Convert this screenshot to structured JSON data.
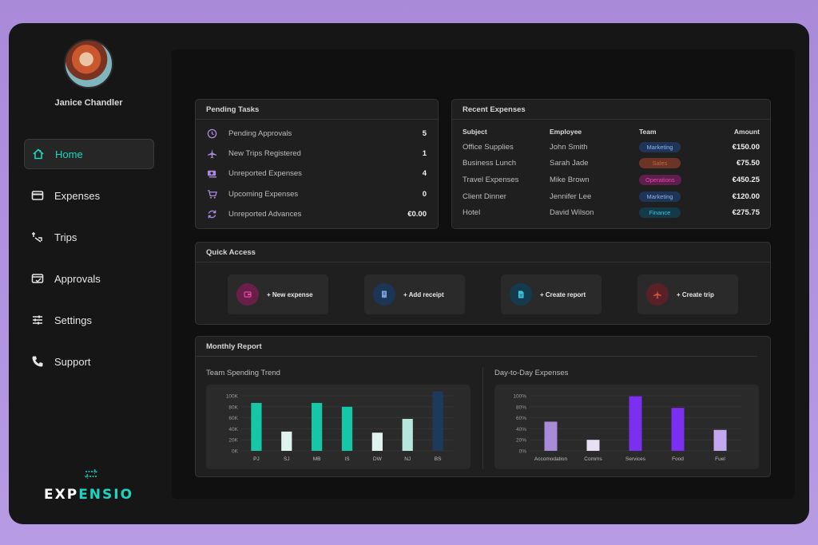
{
  "user": {
    "name": "Janice Chandler"
  },
  "nav": [
    {
      "label": "Home",
      "icon": "home-icon",
      "active": true
    },
    {
      "label": "Expenses",
      "icon": "credit-card-icon",
      "active": false
    },
    {
      "label": "Trips",
      "icon": "route-icon",
      "active": false
    },
    {
      "label": "Approvals",
      "icon": "approval-card-icon",
      "active": false
    },
    {
      "label": "Settings",
      "icon": "sliders-icon",
      "active": false
    },
    {
      "label": "Support",
      "icon": "phone-icon",
      "active": false
    }
  ],
  "brand": {
    "prefix": "EXP",
    "accent": "ENSIO",
    "accent_color": "#19d6c0"
  },
  "pending": {
    "title": "Pending Tasks",
    "items": [
      {
        "label": "Pending Approvals",
        "value": "5",
        "icon": "clock-icon"
      },
      {
        "label": "New Trips Registered",
        "value": "1",
        "icon": "airplane-icon"
      },
      {
        "label": "Unreported Expenses",
        "value": "4",
        "icon": "money-icon"
      },
      {
        "label": "Upcoming Expenses",
        "value": "0",
        "icon": "cart-icon"
      },
      {
        "label": "Unreported Advances",
        "value": "€0.00",
        "icon": "refresh-icon"
      }
    ]
  },
  "recent": {
    "title": "Recent Expenses",
    "headers": [
      "Subject",
      "Employee",
      "Team",
      "Amount"
    ],
    "rows": [
      {
        "subject": "Office Supplies",
        "employee": "John Smith",
        "team": "Marketing",
        "amount": "€150.00"
      },
      {
        "subject": "Business Lunch",
        "employee": "Sarah Jade",
        "team": "Sales",
        "amount": "€75.50"
      },
      {
        "subject": "Travel Expenses",
        "employee": "Mike Brown",
        "team": "Operations",
        "amount": "€450.25"
      },
      {
        "subject": "Client Dinner",
        "employee": "Jennifer Lee",
        "team": "Marketing",
        "amount": "€120.00"
      },
      {
        "subject": "Hotel",
        "employee": "David Wilson",
        "team": "Finance",
        "amount": "€275.75"
      }
    ],
    "team_colors": {
      "Marketing": {
        "bg": "#1f3558",
        "fg": "#8fb4f0"
      },
      "Sales": {
        "bg": "#6b3426",
        "fg": "#c9643f"
      },
      "Operations": {
        "bg": "#5e1f4e",
        "fg": "#e34aa8"
      },
      "Finance": {
        "bg": "#143a4a",
        "fg": "#3cc6de"
      }
    }
  },
  "quick": {
    "title": "Quick Access",
    "buttons": [
      {
        "label": "+ New expense",
        "icon": "wallet-icon",
        "circle": "#6a1f49",
        "glyph": "#e84aa8"
      },
      {
        "label": "+ Add receipt",
        "icon": "receipt-icon",
        "circle": "#1b3555",
        "glyph": "#7aa3e6"
      },
      {
        "label": "+ Create report",
        "icon": "document-icon",
        "circle": "#143a4e",
        "glyph": "#3cc6de"
      },
      {
        "label": "+ Create trip",
        "icon": "plane-icon",
        "circle": "#5a2028",
        "glyph": "#d0573a"
      }
    ]
  },
  "monthly": {
    "title": "Monthly Report",
    "team_title": "Team Spending Trend",
    "day_title": "Day-to-Day Expenses"
  },
  "chart_data": [
    {
      "type": "bar",
      "title": "Team Spending Trend",
      "categories": [
        "PJ",
        "SJ",
        "MB",
        "IS",
        "DW",
        "NJ",
        "BS"
      ],
      "values": [
        87000,
        35000,
        87000,
        80000,
        33000,
        58000,
        110000
      ],
      "bar_colors": [
        "#16c7a7",
        "#dff3ef",
        "#16c7a7",
        "#16c7a7",
        "#dff3ef",
        "#b7e6dc",
        "#1d3a5c"
      ],
      "y_ticks": [
        "0K",
        "20K",
        "40K",
        "60K",
        "80K",
        "100K"
      ],
      "ylim": [
        0,
        100000
      ]
    },
    {
      "type": "bar",
      "title": "Day-to-Day Expenses",
      "categories": [
        "Accomodation",
        "Comms",
        "Services",
        "Food",
        "Fuel"
      ],
      "values": [
        53,
        20,
        99,
        78,
        38
      ],
      "bar_colors": [
        "#a98ad9",
        "#e6e0f2",
        "#7b2ff0",
        "#7b2ff0",
        "#c2a8ee"
      ],
      "y_ticks": [
        "0%",
        "20%",
        "40%",
        "60%",
        "80%",
        "100%"
      ],
      "ylim": [
        0,
        100
      ]
    }
  ]
}
